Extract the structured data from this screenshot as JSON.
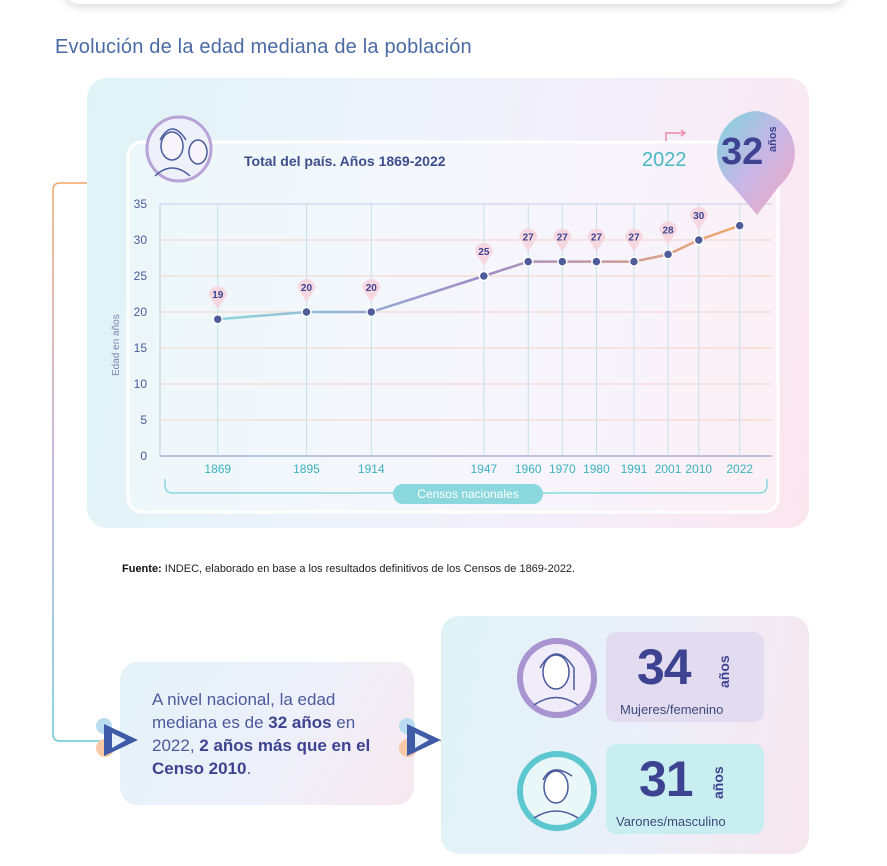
{
  "page": {
    "title": "Evolución de la edad mediana de la población"
  },
  "chart": {
    "subtitle": "Total del país. Años 1869-2022",
    "highlight_year": "2022",
    "highlight_value": "32",
    "highlight_unit": "años",
    "ylabel": "Edad en años",
    "xlabel": "Censos nacionales"
  },
  "chart_data": {
    "type": "line",
    "title": "Total del país. Años 1869-2022",
    "xlabel": "Censos nacionales",
    "ylabel": "Edad en años",
    "x": [
      "1869",
      "1895",
      "1914",
      "1947",
      "1960",
      "1970",
      "1980",
      "1991",
      "2001",
      "2010",
      "2022"
    ],
    "series": [
      {
        "values": [
          19,
          20,
          20,
          25,
          27,
          27,
          27,
          27,
          28,
          30,
          32
        ]
      }
    ],
    "point_labels": [
      "19",
      "20",
      "20",
      "25",
      "27",
      "27",
      "27",
      "27",
      "28",
      "30",
      ""
    ],
    "yticks": [
      "0",
      "5",
      "10",
      "15",
      "20",
      "25",
      "30",
      "35"
    ],
    "ylim": [
      0,
      35
    ],
    "grid": true
  },
  "source": {
    "label": "Fuente:",
    "text": "INDEC, elaborado en base a los resultados definitivos de los Censos de 1869-2022."
  },
  "summary": {
    "part1": "A nivel nacional, la edad mediana es de ",
    "bold1": "32 años",
    "part2": " en 2022, ",
    "bold2": "2 años más que en el Censo 2010",
    "part3": "."
  },
  "gender": {
    "women": {
      "value": "34",
      "unit": "años",
      "label": "Mujeres/femenino"
    },
    "men": {
      "value": "31",
      "unit": "años",
      "label": "Varones/masculino"
    }
  },
  "colors": {
    "line": "#9e8cc8",
    "point": "#4e5d99",
    "accent_teal": "#49b7c1",
    "accent_orange": "#f2a86a",
    "navy": "#3d4390"
  }
}
